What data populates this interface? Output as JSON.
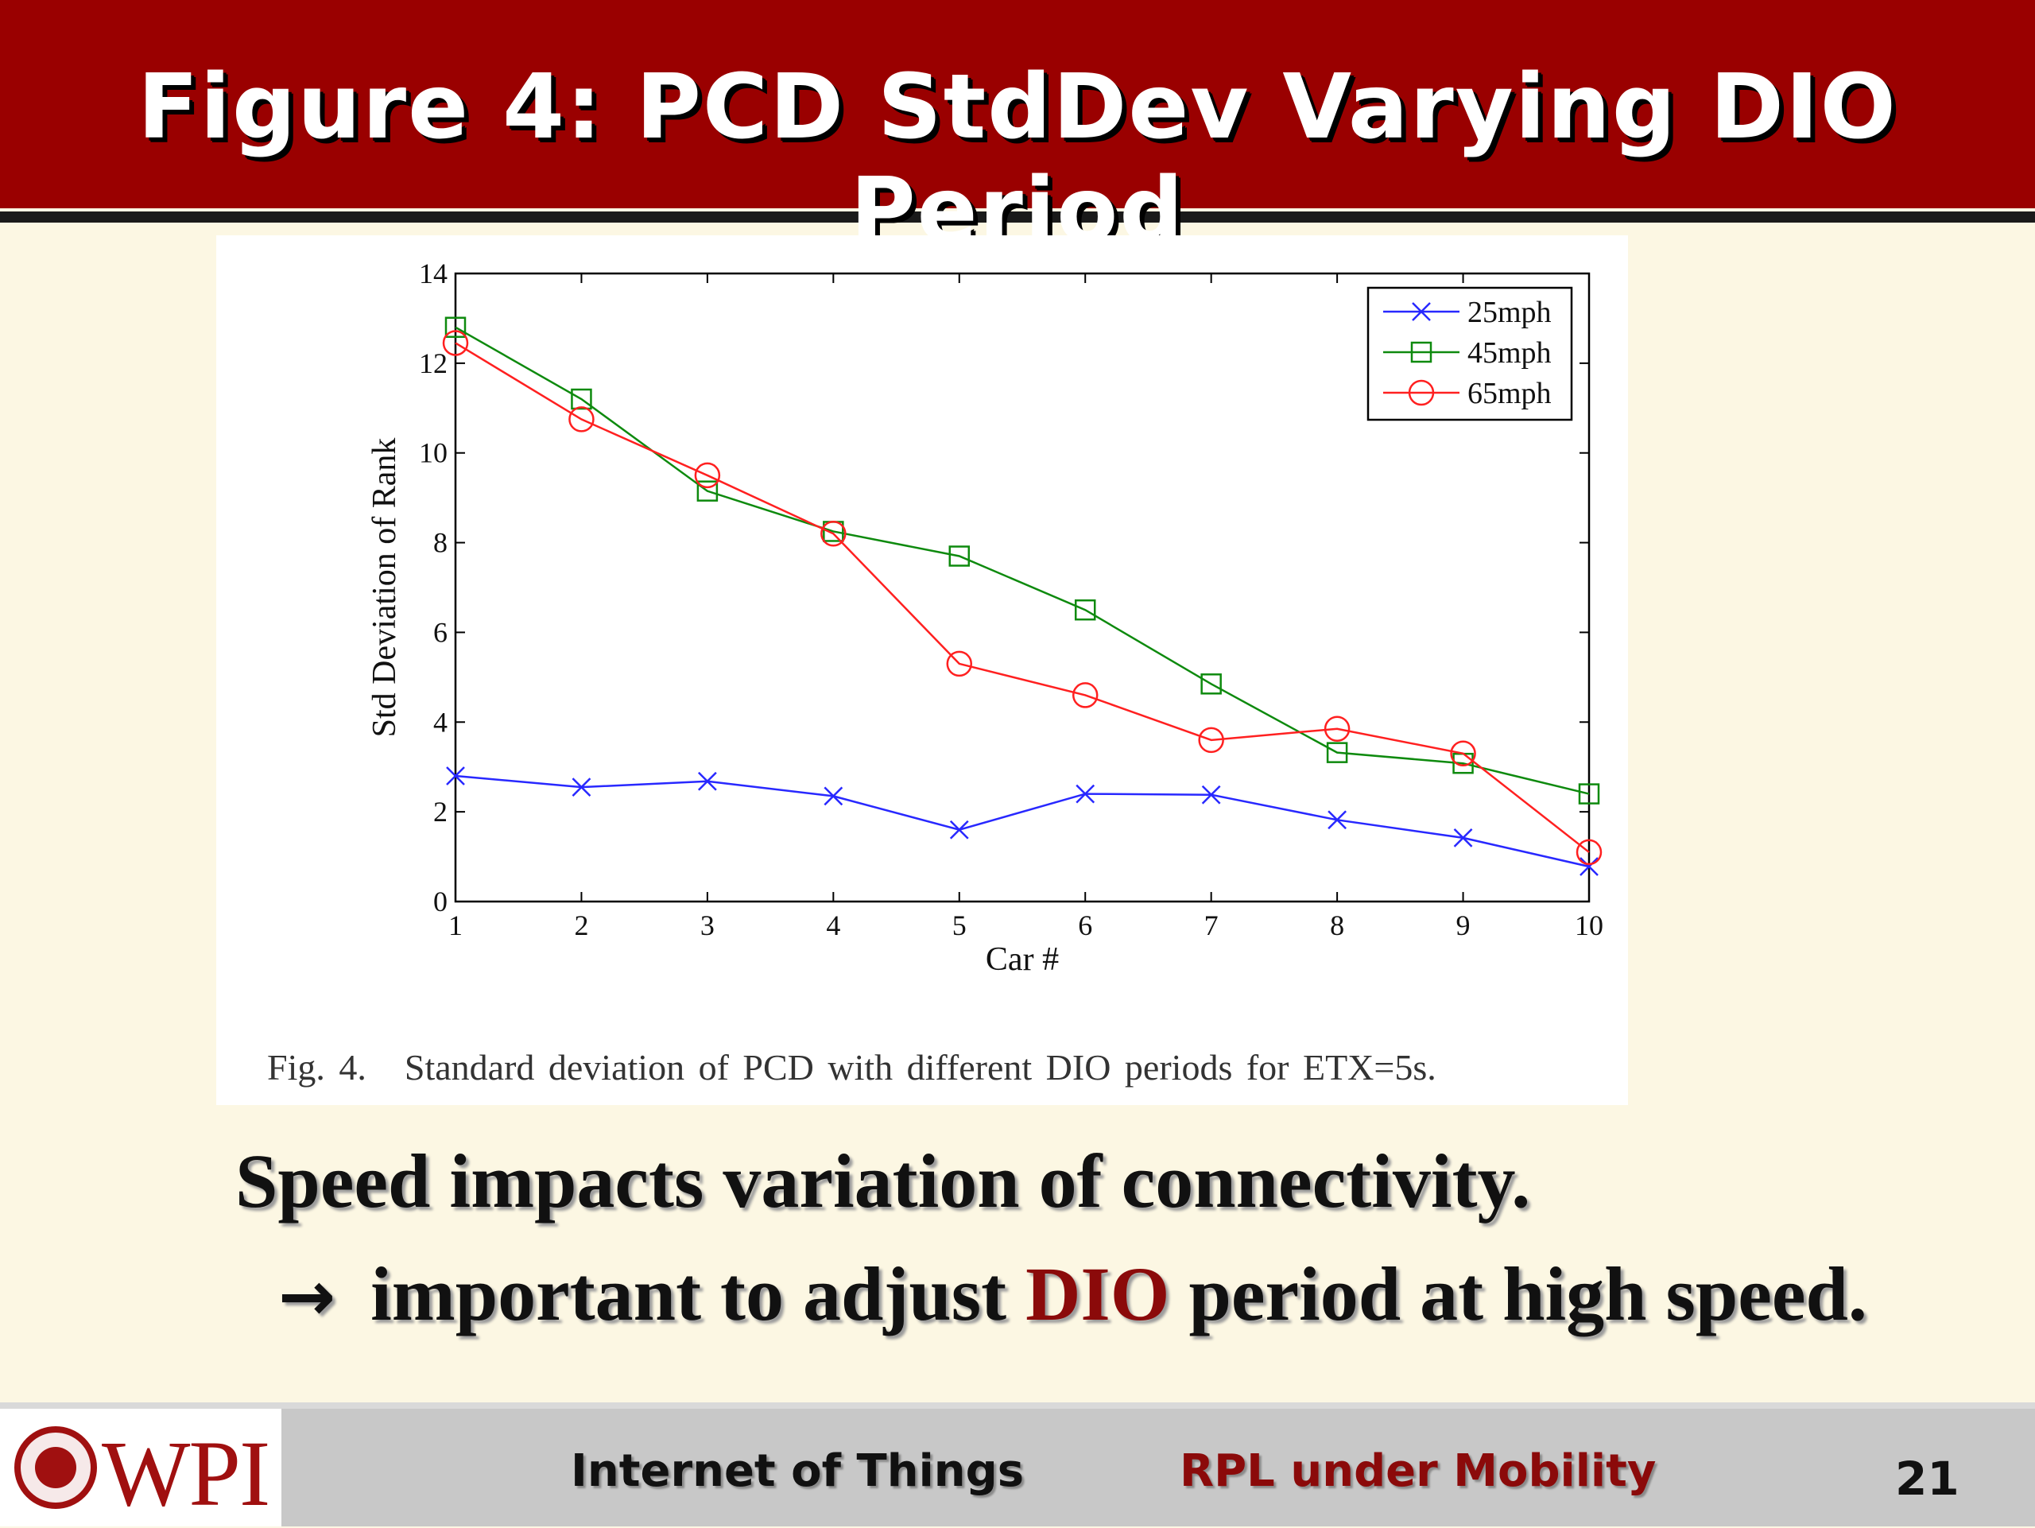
{
  "slide": {
    "title": "Figure 4: PCD StdDev Varying DIO Period",
    "caption_figno": "Fig. 4.",
    "caption_text": "Standard deviation of PCD with different DIO periods for ETX=5s.",
    "bullet1": "Speed impacts variation of connectivity.",
    "bullet2_arrow": "→",
    "bullet2_pre": "important to adjust",
    "bullet2_accent": "DIO",
    "bullet2_post": "period at high speed."
  },
  "footer": {
    "logo_text": "WPI",
    "course": "Internet of Things",
    "topic": "RPL under Mobility",
    "page": "21"
  },
  "colors": {
    "title_bg": "#9a0000",
    "accent": "#8b0a0a",
    "series_25": "#2828ff",
    "series_45": "#0e8a0e",
    "series_65": "#ff2020"
  },
  "chart_data": {
    "type": "line",
    "xlabel": "Car #",
    "ylabel": "Std Deviation of Rank",
    "x": [
      1,
      2,
      3,
      4,
      5,
      6,
      7,
      8,
      9,
      10
    ],
    "xlim": [
      1,
      10
    ],
    "ylim": [
      0,
      14
    ],
    "xticks": [
      1,
      2,
      3,
      4,
      5,
      6,
      7,
      8,
      9,
      10
    ],
    "yticks": [
      0,
      2,
      4,
      6,
      8,
      10,
      12,
      14
    ],
    "grid": false,
    "legend_position": "top-right",
    "series": [
      {
        "name": "25mph",
        "marker": "x",
        "color": "#2828ff",
        "values": [
          2.8,
          2.55,
          2.68,
          2.35,
          1.6,
          2.4,
          2.38,
          1.82,
          1.42,
          0.78
        ]
      },
      {
        "name": "45mph",
        "marker": "square",
        "color": "#0e8a0e",
        "values": [
          12.8,
          11.2,
          9.15,
          8.25,
          7.7,
          6.5,
          4.85,
          3.32,
          3.08,
          2.4
        ]
      },
      {
        "name": "65mph",
        "marker": "circle",
        "color": "#ff2020",
        "values": [
          12.45,
          10.75,
          9.5,
          8.2,
          5.3,
          4.6,
          3.6,
          3.85,
          3.3,
          1.1
        ]
      }
    ]
  }
}
